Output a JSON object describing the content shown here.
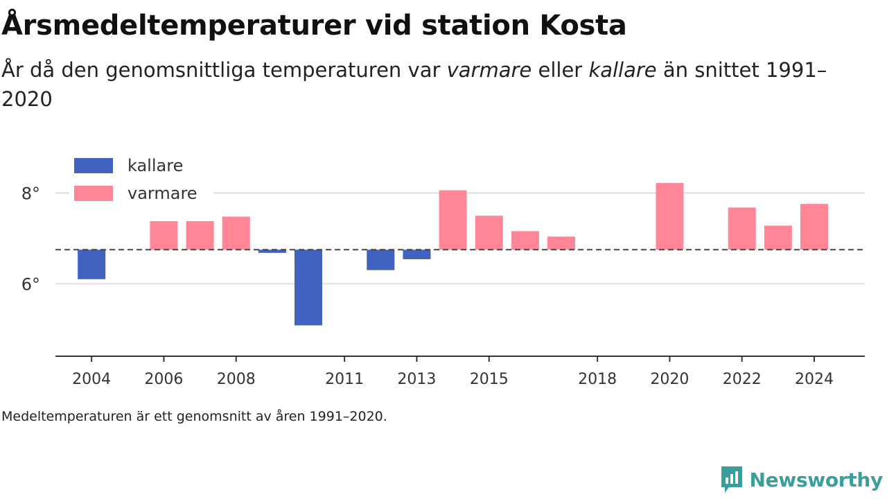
{
  "title": "Årsmedeltemperaturer vid station Kosta",
  "subtitle": {
    "part1": "År då den genomsnittliga temperaturen var ",
    "warmer_word": "varmare",
    "part2": " eller ",
    "colder_word": "kallare",
    "part3": " än snittet 1991–2020"
  },
  "note": "Medeltemperaturen är ett genomsnitt av åren 1991–2020.",
  "brand": {
    "name": "Newsworthy",
    "logo_icon": "newsworthy-logo-icon",
    "color": "#3a9e9b"
  },
  "colors": {
    "kallare": "#4162bf",
    "varmare": "#ff8696",
    "grid": "#dddddd",
    "axis": "#333333",
    "reference": "#444444"
  },
  "chart_data": {
    "type": "bar",
    "baseline": 6.75,
    "ylim": [
      4.4,
      9.2
    ],
    "yticks": [
      {
        "value": 6,
        "label": "6°"
      },
      {
        "value": 8,
        "label": "8°"
      }
    ],
    "xlim": [
      2003.0,
      2025.4
    ],
    "xticks": [
      {
        "value": 2004,
        "label": "2004"
      },
      {
        "value": 2006,
        "label": "2006"
      },
      {
        "value": 2008,
        "label": "2008"
      },
      {
        "value": 2011,
        "label": "2011"
      },
      {
        "value": 2013,
        "label": "2013"
      },
      {
        "value": 2015,
        "label": "2015"
      },
      {
        "value": 2018,
        "label": "2018"
      },
      {
        "value": 2020,
        "label": "2020"
      },
      {
        "value": 2022,
        "label": "2022"
      },
      {
        "value": 2024,
        "label": "2024"
      }
    ],
    "legend": {
      "placement": "top-left",
      "entries": [
        {
          "key": "kallare",
          "label": "kallare"
        },
        {
          "key": "varmare",
          "label": "varmare"
        }
      ]
    },
    "grid": true,
    "bars": [
      {
        "year": 2004,
        "value": 6.1,
        "category": "kallare"
      },
      {
        "year": 2006,
        "value": 7.38,
        "category": "varmare"
      },
      {
        "year": 2007,
        "value": 7.38,
        "category": "varmare"
      },
      {
        "year": 2008,
        "value": 7.48,
        "category": "varmare"
      },
      {
        "year": 2009,
        "value": 6.68,
        "category": "kallare"
      },
      {
        "year": 2010,
        "value": 5.08,
        "category": "kallare"
      },
      {
        "year": 2012,
        "value": 6.3,
        "category": "kallare"
      },
      {
        "year": 2013,
        "value": 6.54,
        "category": "kallare"
      },
      {
        "year": 2014,
        "value": 8.06,
        "category": "varmare"
      },
      {
        "year": 2015,
        "value": 7.5,
        "category": "varmare"
      },
      {
        "year": 2016,
        "value": 7.16,
        "category": "varmare"
      },
      {
        "year": 2017,
        "value": 7.04,
        "category": "varmare"
      },
      {
        "year": 2020,
        "value": 8.22,
        "category": "varmare"
      },
      {
        "year": 2022,
        "value": 7.68,
        "category": "varmare"
      },
      {
        "year": 2023,
        "value": 7.28,
        "category": "varmare"
      },
      {
        "year": 2024,
        "value": 7.76,
        "category": "varmare"
      }
    ]
  }
}
